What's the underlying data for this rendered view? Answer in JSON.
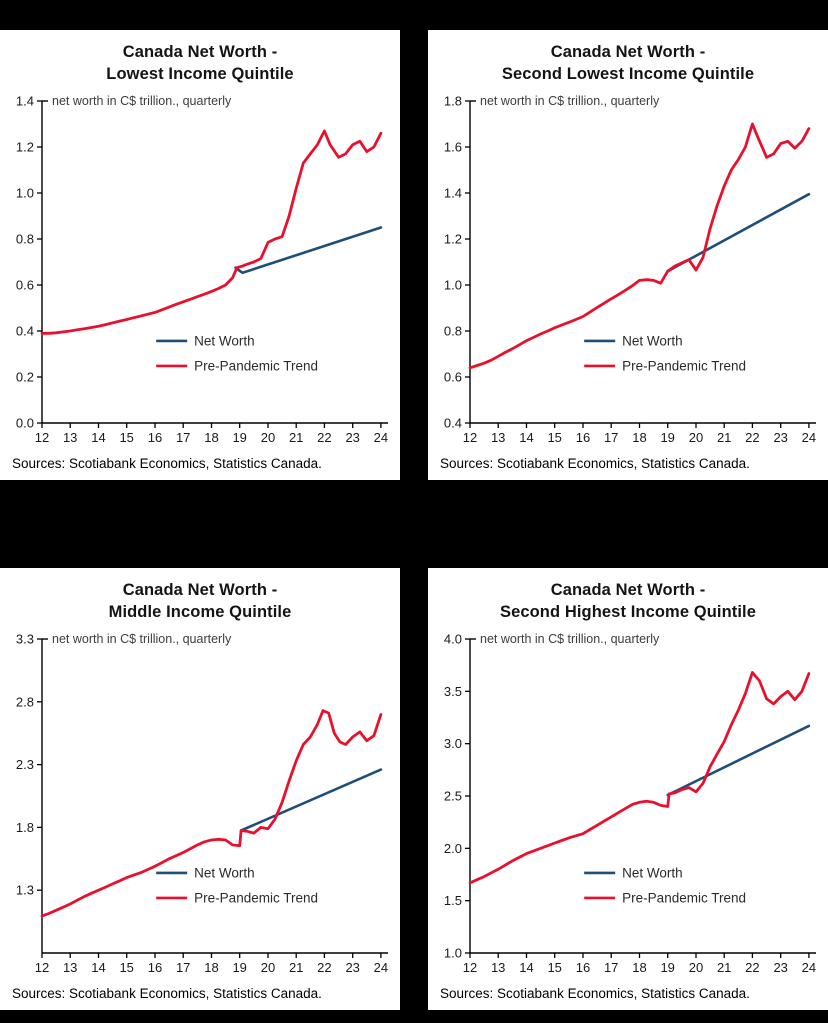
{
  "sources_line": "Sources: Scotiabank Economics, Statistics Canada.",
  "colors": {
    "net_worth_blue": "#1f4e79",
    "trend_red": "#e8112d",
    "axis_black": "#000000",
    "background_black": "#000000",
    "panel_white": "#ffffff"
  },
  "chart_data": [
    {
      "type": "line",
      "title_line1": "Canada Net Worth -",
      "title_line2": "Lowest Income Quintile",
      "note": "net worth in C$ trillion., quarterly",
      "xlim": [
        12,
        24.25
      ],
      "ylim": [
        0.0,
        1.4
      ],
      "ydecimals": 1,
      "yticks": [
        0.0,
        0.2,
        0.4,
        0.6,
        0.8,
        1.0,
        1.2,
        1.4
      ],
      "xticks": [
        12,
        13,
        14,
        15,
        16,
        17,
        18,
        19,
        20,
        21,
        22,
        23,
        24
      ],
      "grid": false,
      "legend_position": "inside-lower-right",
      "legend_items": [
        {
          "label": "Net Worth",
          "color": "#1f4e79"
        },
        {
          "label": "Pre-Pandemic Trend",
          "color": "#e8112d"
        }
      ],
      "series": [
        {
          "id": "net-worth",
          "name": "Net Worth",
          "color": "#1f4e79",
          "width": 2.6,
          "points": [
            [
              18.85,
              0.675
            ],
            [
              19.1,
              0.653
            ],
            [
              24,
              0.85
            ]
          ]
        },
        {
          "id": "pre-pandemic-trend",
          "name": "Pre-Pandemic Trend",
          "color": "#e8112d",
          "width": 2.8,
          "points": [
            [
              12,
              0.39
            ],
            [
              12.25,
              0.39
            ],
            [
              12.5,
              0.392
            ],
            [
              12.75,
              0.396
            ],
            [
              13,
              0.4
            ],
            [
              13.25,
              0.405
            ],
            [
              13.5,
              0.41
            ],
            [
              13.75,
              0.415
            ],
            [
              14,
              0.421
            ],
            [
              14.25,
              0.428
            ],
            [
              14.5,
              0.435
            ],
            [
              14.75,
              0.443
            ],
            [
              15,
              0.45
            ],
            [
              15.25,
              0.458
            ],
            [
              15.5,
              0.465
            ],
            [
              15.75,
              0.473
            ],
            [
              16,
              0.481
            ],
            [
              16.25,
              0.492
            ],
            [
              16.5,
              0.504
            ],
            [
              16.75,
              0.516
            ],
            [
              17,
              0.527
            ],
            [
              17.25,
              0.538
            ],
            [
              17.5,
              0.549
            ],
            [
              17.75,
              0.56
            ],
            [
              18,
              0.572
            ],
            [
              18.25,
              0.585
            ],
            [
              18.5,
              0.6
            ],
            [
              18.75,
              0.632
            ],
            [
              18.9,
              0.675
            ],
            [
              19.1,
              0.682
            ],
            [
              19.25,
              0.69
            ],
            [
              19.5,
              0.7
            ],
            [
              19.75,
              0.715
            ],
            [
              20,
              0.785
            ],
            [
              20.25,
              0.8
            ],
            [
              20.5,
              0.81
            ],
            [
              20.75,
              0.9
            ],
            [
              21,
              1.02
            ],
            [
              21.25,
              1.13
            ],
            [
              21.5,
              1.17
            ],
            [
              21.75,
              1.21
            ],
            [
              22,
              1.27
            ],
            [
              22.2,
              1.21
            ],
            [
              22.5,
              1.155
            ],
            [
              22.75,
              1.17
            ],
            [
              23,
              1.21
            ],
            [
              23.25,
              1.225
            ],
            [
              23.5,
              1.18
            ],
            [
              23.75,
              1.2
            ],
            [
              24,
              1.26
            ]
          ]
        }
      ]
    },
    {
      "type": "line",
      "title_line1": "Canada Net Worth -",
      "title_line2": "Second Lowest Income Quintile",
      "note": "net worth in C$ trillion., quarterly",
      "xlim": [
        12,
        24.25
      ],
      "ylim": [
        0.4,
        1.8
      ],
      "ydecimals": 1,
      "yticks": [
        0.4,
        0.6,
        0.8,
        1.0,
        1.2,
        1.4,
        1.6,
        1.8
      ],
      "xticks": [
        12,
        13,
        14,
        15,
        16,
        17,
        18,
        19,
        20,
        21,
        22,
        23,
        24
      ],
      "grid": false,
      "legend_position": "inside-lower-right",
      "legend_items": [
        {
          "label": "Net Worth",
          "color": "#1f4e79"
        },
        {
          "label": "Pre-Pandemic Trend",
          "color": "#e8112d"
        }
      ],
      "series": [
        {
          "id": "net-worth",
          "name": "Net Worth",
          "color": "#1f4e79",
          "width": 2.6,
          "points": [
            [
              19.0,
              1.06
            ],
            [
              24,
              1.395
            ]
          ]
        },
        {
          "id": "pre-pandemic-trend",
          "name": "Pre-Pandemic Trend",
          "color": "#e8112d",
          "width": 2.8,
          "points": [
            [
              12,
              0.64
            ],
            [
              12.25,
              0.65
            ],
            [
              12.5,
              0.66
            ],
            [
              12.75,
              0.673
            ],
            [
              13,
              0.69
            ],
            [
              13.25,
              0.707
            ],
            [
              13.5,
              0.723
            ],
            [
              13.75,
              0.74
            ],
            [
              14,
              0.758
            ],
            [
              14.25,
              0.772
            ],
            [
              14.5,
              0.787
            ],
            [
              14.75,
              0.8
            ],
            [
              15,
              0.814
            ],
            [
              15.25,
              0.826
            ],
            [
              15.5,
              0.838
            ],
            [
              15.75,
              0.85
            ],
            [
              16,
              0.863
            ],
            [
              16.25,
              0.882
            ],
            [
              16.5,
              0.902
            ],
            [
              16.75,
              0.921
            ],
            [
              17,
              0.94
            ],
            [
              17.25,
              0.958
            ],
            [
              17.5,
              0.977
            ],
            [
              17.75,
              0.997
            ],
            [
              18,
              1.02
            ],
            [
              18.25,
              1.023
            ],
            [
              18.5,
              1.02
            ],
            [
              18.75,
              1.008
            ],
            [
              19,
              1.06
            ],
            [
              19.25,
              1.082
            ],
            [
              19.5,
              1.096
            ],
            [
              19.75,
              1.11
            ],
            [
              20,
              1.065
            ],
            [
              20.25,
              1.12
            ],
            [
              20.5,
              1.245
            ],
            [
              20.75,
              1.345
            ],
            [
              21,
              1.43
            ],
            [
              21.25,
              1.5
            ],
            [
              21.5,
              1.545
            ],
            [
              21.75,
              1.6
            ],
            [
              22,
              1.7
            ],
            [
              22.2,
              1.64
            ],
            [
              22.5,
              1.555
            ],
            [
              22.75,
              1.57
            ],
            [
              23,
              1.615
            ],
            [
              23.25,
              1.625
            ],
            [
              23.5,
              1.595
            ],
            [
              23.75,
              1.625
            ],
            [
              24,
              1.68
            ]
          ]
        }
      ]
    },
    {
      "type": "line",
      "title_line1": "Canada Net Worth -",
      "title_line2": "Middle Income Quintile",
      "note": "net worth in C$ trillion., quarterly",
      "xlim": [
        12,
        24.25
      ],
      "ylim": [
        0.8,
        3.3
      ],
      "ydecimals": 1,
      "yticks": [
        1.3,
        1.8,
        2.3,
        2.8,
        3.3
      ],
      "xticks": [
        12,
        13,
        14,
        15,
        16,
        17,
        18,
        19,
        20,
        21,
        22,
        23,
        24
      ],
      "grid": false,
      "legend_position": "inside-lower-right",
      "legend_items": [
        {
          "label": "Net Worth",
          "color": "#1f4e79"
        },
        {
          "label": "Pre-Pandemic Trend",
          "color": "#e8112d"
        }
      ],
      "series": [
        {
          "id": "net-worth",
          "name": "Net Worth",
          "color": "#1f4e79",
          "width": 2.6,
          "points": [
            [
              19.05,
              1.775
            ],
            [
              24,
              2.26
            ]
          ]
        },
        {
          "id": "pre-pandemic-trend",
          "name": "Pre-Pandemic Trend",
          "color": "#e8112d",
          "width": 2.8,
          "points": [
            [
              12,
              1.095
            ],
            [
              12.25,
              1.115
            ],
            [
              12.5,
              1.14
            ],
            [
              12.75,
              1.165
            ],
            [
              13,
              1.19
            ],
            [
              13.25,
              1.22
            ],
            [
              13.5,
              1.25
            ],
            [
              13.75,
              1.275
            ],
            [
              14,
              1.3
            ],
            [
              14.25,
              1.325
            ],
            [
              14.5,
              1.35
            ],
            [
              14.75,
              1.375
            ],
            [
              15,
              1.4
            ],
            [
              15.25,
              1.42
            ],
            [
              15.5,
              1.44
            ],
            [
              15.75,
              1.465
            ],
            [
              16,
              1.49
            ],
            [
              16.25,
              1.52
            ],
            [
              16.5,
              1.55
            ],
            [
              16.75,
              1.575
            ],
            [
              17,
              1.6
            ],
            [
              17.25,
              1.63
            ],
            [
              17.5,
              1.66
            ],
            [
              17.75,
              1.685
            ],
            [
              18,
              1.7
            ],
            [
              18.25,
              1.705
            ],
            [
              18.5,
              1.7
            ],
            [
              18.75,
              1.66
            ],
            [
              19,
              1.655
            ],
            [
              19.05,
              1.775
            ],
            [
              19.25,
              1.77
            ],
            [
              19.5,
              1.755
            ],
            [
              19.75,
              1.8
            ],
            [
              20,
              1.79
            ],
            [
              20.25,
              1.865
            ],
            [
              20.5,
              2.0
            ],
            [
              20.75,
              2.17
            ],
            [
              21,
              2.33
            ],
            [
              21.25,
              2.46
            ],
            [
              21.5,
              2.52
            ],
            [
              21.75,
              2.62
            ],
            [
              21.95,
              2.73
            ],
            [
              22.15,
              2.71
            ],
            [
              22.35,
              2.55
            ],
            [
              22.55,
              2.48
            ],
            [
              22.75,
              2.46
            ],
            [
              23,
              2.52
            ],
            [
              23.25,
              2.56
            ],
            [
              23.5,
              2.49
            ],
            [
              23.75,
              2.53
            ],
            [
              24,
              2.7
            ]
          ]
        }
      ]
    },
    {
      "type": "line",
      "title_line1": "Canada Net Worth -",
      "title_line2": "Second Highest Income Quintile",
      "note": "net worth in C$ trillion., quarterly",
      "xlim": [
        12,
        24.25
      ],
      "ylim": [
        1.0,
        4.0
      ],
      "ydecimals": 1,
      "yticks": [
        1.0,
        1.5,
        2.0,
        2.5,
        3.0,
        3.5,
        4.0
      ],
      "xticks": [
        12,
        13,
        14,
        15,
        16,
        17,
        18,
        19,
        20,
        21,
        22,
        23,
        24
      ],
      "grid": false,
      "legend_position": "inside-lower-right",
      "legend_items": [
        {
          "label": "Net Worth",
          "color": "#1f4e79"
        },
        {
          "label": "Pre-Pandemic Trend",
          "color": "#e8112d"
        }
      ],
      "series": [
        {
          "id": "net-worth",
          "name": "Net Worth",
          "color": "#1f4e79",
          "width": 2.6,
          "points": [
            [
              19.0,
              2.51
            ],
            [
              24,
              3.17
            ]
          ]
        },
        {
          "id": "pre-pandemic-trend",
          "name": "Pre-Pandemic Trend",
          "color": "#e8112d",
          "width": 2.8,
          "points": [
            [
              12,
              1.67
            ],
            [
              12.25,
              1.7
            ],
            [
              12.5,
              1.73
            ],
            [
              12.75,
              1.765
            ],
            [
              13,
              1.8
            ],
            [
              13.25,
              1.84
            ],
            [
              13.5,
              1.88
            ],
            [
              13.75,
              1.915
            ],
            [
              14,
              1.95
            ],
            [
              14.25,
              1.975
            ],
            [
              14.5,
              2.0
            ],
            [
              14.75,
              2.025
            ],
            [
              15,
              2.05
            ],
            [
              15.25,
              2.075
            ],
            [
              15.5,
              2.1
            ],
            [
              15.75,
              2.12
            ],
            [
              16,
              2.14
            ],
            [
              16.25,
              2.18
            ],
            [
              16.5,
              2.22
            ],
            [
              16.75,
              2.26
            ],
            [
              17,
              2.3
            ],
            [
              17.25,
              2.34
            ],
            [
              17.5,
              2.38
            ],
            [
              17.75,
              2.42
            ],
            [
              18,
              2.44
            ],
            [
              18.25,
              2.45
            ],
            [
              18.5,
              2.44
            ],
            [
              18.75,
              2.41
            ],
            [
              19,
              2.4
            ],
            [
              19.05,
              2.52
            ],
            [
              19.25,
              2.53
            ],
            [
              19.5,
              2.56
            ],
            [
              19.75,
              2.58
            ],
            [
              20,
              2.54
            ],
            [
              20.25,
              2.62
            ],
            [
              20.5,
              2.78
            ],
            [
              20.75,
              2.9
            ],
            [
              21,
              3.02
            ],
            [
              21.25,
              3.18
            ],
            [
              21.5,
              3.32
            ],
            [
              21.75,
              3.48
            ],
            [
              22,
              3.68
            ],
            [
              22.25,
              3.6
            ],
            [
              22.5,
              3.43
            ],
            [
              22.75,
              3.38
            ],
            [
              23,
              3.45
            ],
            [
              23.25,
              3.5
            ],
            [
              23.5,
              3.42
            ],
            [
              23.75,
              3.5
            ],
            [
              24,
              3.67
            ]
          ]
        }
      ]
    }
  ]
}
